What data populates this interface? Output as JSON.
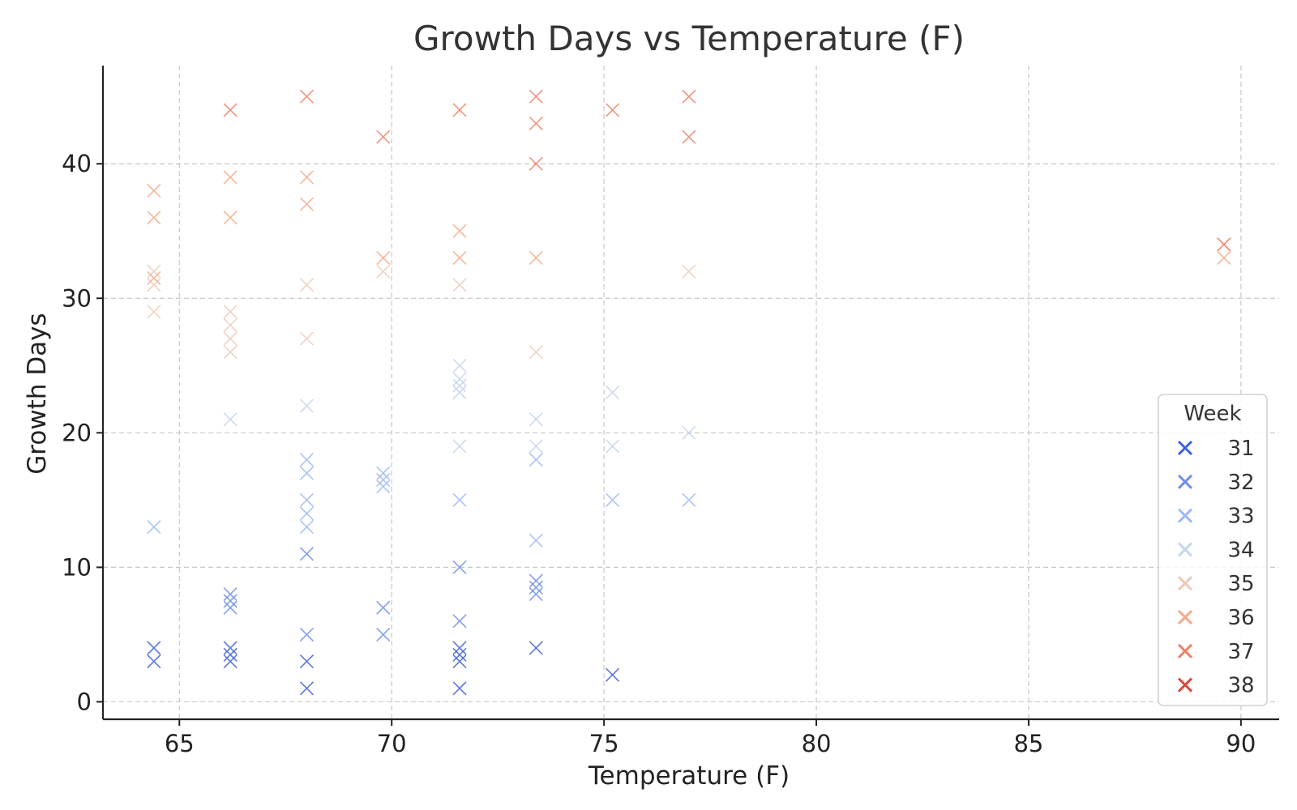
{
  "chart_data": {
    "type": "scatter",
    "title": "Growth Days vs Temperature (F)",
    "xlabel": "Temperature (F)",
    "ylabel": "Growth Days",
    "xlim": [
      63.2,
      90.9
    ],
    "ylim": [
      -1.3,
      47.3
    ],
    "xticks": [
      65,
      70,
      75,
      80,
      85,
      90
    ],
    "yticks": [
      0,
      10,
      20,
      30,
      40
    ],
    "grid": true,
    "marker": "x",
    "legend": {
      "title": "Week",
      "position": "lower-right"
    },
    "series": [
      {
        "name": "31",
        "color": "#3f5fd6",
        "points": [
          [
            64.4,
            3
          ],
          [
            64.4,
            4
          ],
          [
            66.2,
            3
          ],
          [
            66.2,
            3.5
          ],
          [
            66.2,
            4
          ],
          [
            68.0,
            1
          ],
          [
            68.0,
            3
          ],
          [
            71.6,
            1
          ],
          [
            71.6,
            3
          ],
          [
            71.6,
            3.5
          ],
          [
            71.6,
            4
          ],
          [
            73.4,
            4
          ],
          [
            75.2,
            2
          ]
        ]
      },
      {
        "name": "32",
        "color": "#6f8fe8",
        "points": [
          [
            66.2,
            7
          ],
          [
            66.2,
            7.5
          ],
          [
            66.2,
            8
          ],
          [
            68.0,
            5
          ],
          [
            68.0,
            11
          ],
          [
            69.8,
            5
          ],
          [
            69.8,
            7
          ],
          [
            71.6,
            6
          ],
          [
            71.6,
            10
          ],
          [
            73.4,
            8
          ],
          [
            73.4,
            8.5
          ],
          [
            73.4,
            9
          ]
        ]
      },
      {
        "name": "33",
        "color": "#9db8f5",
        "points": [
          [
            64.4,
            13
          ],
          [
            68.0,
            13
          ],
          [
            68.0,
            14
          ],
          [
            68.0,
            15
          ],
          [
            68.0,
            17
          ],
          [
            68.0,
            18
          ],
          [
            69.8,
            16
          ],
          [
            69.8,
            16.5
          ],
          [
            69.8,
            17
          ],
          [
            71.6,
            15
          ],
          [
            73.4,
            12
          ],
          [
            73.4,
            18
          ],
          [
            75.2,
            15
          ],
          [
            77.0,
            15
          ]
        ]
      },
      {
        "name": "34",
        "color": "#c6d4ec",
        "points": [
          [
            66.2,
            21
          ],
          [
            68.0,
            22
          ],
          [
            71.6,
            19
          ],
          [
            71.6,
            23
          ],
          [
            71.6,
            23.5
          ],
          [
            71.6,
            24
          ],
          [
            71.6,
            25
          ],
          [
            73.4,
            19
          ],
          [
            73.4,
            21
          ],
          [
            75.2,
            19
          ],
          [
            75.2,
            23
          ],
          [
            77.0,
            20
          ]
        ]
      },
      {
        "name": "35",
        "color": "#eccab8",
        "points": [
          [
            64.4,
            29
          ],
          [
            64.4,
            31
          ],
          [
            64.4,
            32
          ],
          [
            66.2,
            26
          ],
          [
            66.2,
            27
          ],
          [
            66.2,
            28
          ],
          [
            66.2,
            29
          ],
          [
            68.0,
            27
          ],
          [
            68.0,
            31
          ],
          [
            69.8,
            32
          ],
          [
            71.6,
            31
          ],
          [
            73.4,
            26
          ],
          [
            77.0,
            32
          ]
        ]
      },
      {
        "name": "36",
        "color": "#f5a988",
        "points": [
          [
            64.4,
            31.5
          ],
          [
            64.4,
            36
          ],
          [
            64.4,
            38
          ],
          [
            66.2,
            36
          ],
          [
            66.2,
            39
          ],
          [
            68.0,
            37
          ],
          [
            68.0,
            39
          ],
          [
            69.8,
            33
          ],
          [
            71.6,
            33
          ],
          [
            71.6,
            35
          ],
          [
            73.4,
            33
          ],
          [
            89.6,
            33
          ],
          [
            89.6,
            34
          ]
        ]
      },
      {
        "name": "37",
        "color": "#ee8068",
        "points": [
          [
            66.2,
            44
          ],
          [
            68.0,
            45
          ],
          [
            69.8,
            42
          ],
          [
            71.6,
            44
          ],
          [
            73.4,
            40
          ],
          [
            73.4,
            43
          ],
          [
            73.4,
            45
          ],
          [
            75.2,
            44
          ],
          [
            77.0,
            42
          ],
          [
            77.0,
            45
          ],
          [
            89.6,
            34
          ]
        ]
      },
      {
        "name": "38",
        "color": "#d44b3e",
        "points": []
      }
    ]
  }
}
